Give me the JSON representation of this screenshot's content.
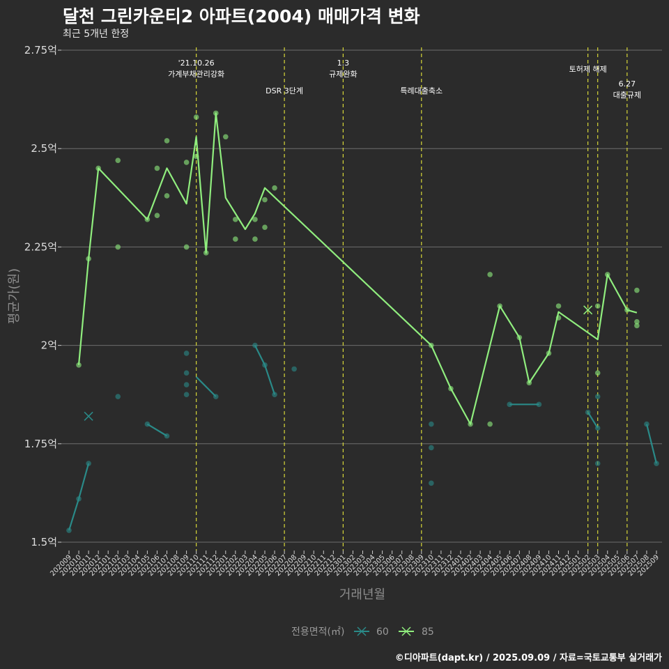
{
  "title": "달천 그린카운티2 아파트(2004) 매매가격 변화",
  "subtitle": "최근 5개년 한정",
  "footer": "©디아파트(dapt.kr) / 2025.09.09 / 자료=국토교통부 실거래가",
  "chart_data": {
    "type": "line",
    "xlabel": "거래년월",
    "ylabel": "평균가(원)",
    "ylim": [
      1.48,
      2.76
    ],
    "yticks": [
      1.5,
      1.75,
      2.0,
      2.25,
      2.5,
      2.75
    ],
    "ytick_labels": [
      "1.5억",
      "1.75억",
      "2억",
      "2.25억",
      "2.5억",
      "2.75억"
    ],
    "grid": true,
    "x_categories": [
      "202009",
      "202010",
      "202011",
      "202012",
      "202101",
      "202102",
      "202103",
      "202104",
      "202105",
      "202106",
      "202107",
      "202108",
      "202109",
      "202110",
      "202111",
      "202112",
      "202201",
      "202202",
      "202203",
      "202204",
      "202205",
      "202206",
      "202207",
      "202208",
      "202209",
      "202210",
      "202211",
      "202212",
      "202301",
      "202302",
      "202303",
      "202304",
      "202305",
      "202306",
      "202307",
      "202308",
      "202309",
      "202310",
      "202311",
      "202312",
      "202401",
      "202402",
      "202403",
      "202404",
      "202405",
      "202406",
      "202407",
      "202408",
      "202409",
      "202410",
      "202411",
      "202412",
      "202501",
      "202502",
      "202503",
      "202504",
      "202505",
      "202506",
      "202507",
      "202508",
      "202509"
    ],
    "legend": {
      "title": "전용면적(㎡)",
      "position": "bottom"
    },
    "series": [
      {
        "name": "60",
        "color": "#2a8a88",
        "lines": [
          [
            [
              "202009",
              1.53
            ],
            [
              "202010",
              1.61
            ],
            [
              "202011",
              1.7
            ]
          ],
          [
            [
              "202105",
              1.8
            ],
            [
              "202107",
              1.77
            ]
          ],
          [
            [
              "202110",
              1.92
            ],
            [
              "202112",
              1.87
            ]
          ],
          [
            [
              "202204",
              2.0
            ],
            [
              "202205",
              1.95
            ],
            [
              "202206",
              1.875
            ]
          ],
          [
            [
              "202406",
              1.85
            ],
            [
              "202409",
              1.85
            ]
          ],
          [
            [
              "202502",
              1.83
            ],
            [
              "202503",
              1.79
            ]
          ],
          [
            [
              "202508",
              1.8
            ],
            [
              "202509",
              1.7
            ]
          ]
        ],
        "points": [
          [
            "202009",
            1.53
          ],
          [
            "202010",
            1.61
          ],
          [
            "202011",
            1.7
          ],
          [
            "202102",
            1.87
          ],
          [
            "202105",
            1.8
          ],
          [
            "202107",
            1.77
          ],
          [
            "202109",
            1.98
          ],
          [
            "202109",
            1.93
          ],
          [
            "202109",
            1.9
          ],
          [
            "202109",
            1.875
          ],
          [
            "202112",
            1.87
          ],
          [
            "202204",
            2.0
          ],
          [
            "202205",
            1.95
          ],
          [
            "202206",
            1.875
          ],
          [
            "202208",
            1.94
          ],
          [
            "202310",
            1.8
          ],
          [
            "202310",
            1.74
          ],
          [
            "202310",
            1.65
          ],
          [
            "202406",
            1.85
          ],
          [
            "202409",
            1.85
          ],
          [
            "202502",
            1.83
          ],
          [
            "202503",
            1.79
          ],
          [
            "202503",
            1.87
          ],
          [
            "202503",
            1.7
          ],
          [
            "202508",
            1.8
          ],
          [
            "202509",
            1.7
          ]
        ],
        "cancelled": [
          [
            "202011",
            1.82
          ]
        ]
      },
      {
        "name": "85",
        "color": "#90ee7e",
        "lines": [
          [
            [
              "202010",
              1.95
            ],
            [
              "202011",
              2.22
            ],
            [
              "202012",
              2.45
            ],
            [
              "202105",
              2.32
            ],
            [
              "202107",
              2.45
            ],
            [
              "202109",
              2.36
            ],
            [
              "202110",
              2.53
            ],
            [
              "202111",
              2.235
            ],
            [
              "202112",
              2.59
            ],
            [
              "202201",
              2.375
            ],
            [
              "202203",
              2.295
            ],
            [
              "202204",
              2.335
            ],
            [
              "202205",
              2.4
            ],
            [
              "202310",
              2.0
            ],
            [
              "202312",
              1.89
            ],
            [
              "202402",
              1.8
            ],
            [
              "202405",
              2.1
            ],
            [
              "202407",
              2.02
            ],
            [
              "202408",
              1.905
            ],
            [
              "202410",
              1.98
            ],
            [
              "202411",
              2.085
            ],
            [
              "202503",
              2.015
            ],
            [
              "202504",
              2.18
            ],
            [
              "202506",
              2.09
            ],
            [
              "202507",
              2.083
            ]
          ]
        ],
        "points": [
          [
            "202010",
            1.95
          ],
          [
            "202011",
            2.22
          ],
          [
            "202012",
            2.45
          ],
          [
            "202102",
            2.47
          ],
          [
            "202102",
            2.25
          ],
          [
            "202105",
            2.32
          ],
          [
            "202106",
            2.45
          ],
          [
            "202106",
            2.33
          ],
          [
            "202107",
            2.52
          ],
          [
            "202107",
            2.38
          ],
          [
            "202109",
            2.465
          ],
          [
            "202109",
            2.25
          ],
          [
            "202110",
            2.58
          ],
          [
            "202110",
            2.48
          ],
          [
            "202111",
            2.235
          ],
          [
            "202112",
            2.59
          ],
          [
            "202201",
            2.53
          ],
          [
            "202202",
            2.32
          ],
          [
            "202202",
            2.27
          ],
          [
            "202204",
            2.32
          ],
          [
            "202204",
            2.27
          ],
          [
            "202205",
            2.37
          ],
          [
            "202205",
            2.3
          ],
          [
            "202206",
            2.4
          ],
          [
            "202310",
            2.0
          ],
          [
            "202312",
            1.89
          ],
          [
            "202402",
            1.8
          ],
          [
            "202404",
            2.18
          ],
          [
            "202404",
            1.8
          ],
          [
            "202405",
            2.1
          ],
          [
            "202407",
            2.02
          ],
          [
            "202408",
            1.905
          ],
          [
            "202410",
            1.98
          ],
          [
            "202411",
            2.1
          ],
          [
            "202411",
            2.07
          ],
          [
            "202503",
            2.1
          ],
          [
            "202503",
            1.93
          ],
          [
            "202504",
            2.18
          ],
          [
            "202506",
            2.09
          ],
          [
            "202507",
            2.14
          ],
          [
            "202507",
            2.06
          ],
          [
            "202507",
            2.05
          ]
        ],
        "cancelled": [
          [
            "202502",
            2.09
          ]
        ]
      }
    ],
    "annotations": [
      {
        "x": "202110",
        "lines": [
          "'21.10.26",
          "가계부채관리강화"
        ],
        "level": 0
      },
      {
        "x": "202207",
        "lines": [
          "DSR 3단계"
        ],
        "level": 2
      },
      {
        "x": "202301",
        "lines": [
          "1.3",
          "규제완화"
        ],
        "level": 0
      },
      {
        "x": "202309",
        "lines": [
          "특례대출축소"
        ],
        "level": 2
      },
      {
        "x": "202502",
        "lines": [
          "토허제 해제"
        ],
        "level": 1
      },
      {
        "x": "202503",
        "lines": [],
        "level": 1
      },
      {
        "x": "202506",
        "lines": [
          "6.27",
          "대출규제"
        ],
        "level": 3
      }
    ]
  }
}
